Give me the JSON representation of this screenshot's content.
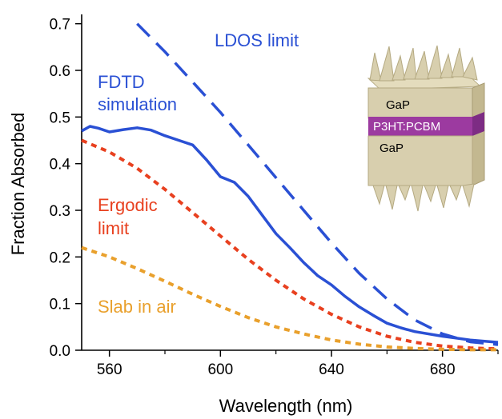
{
  "chart_data": {
    "type": "line",
    "title": "",
    "xlabel": "Wavelength (nm)",
    "ylabel": "Fraction Absorbed",
    "xlim": [
      550,
      700
    ],
    "ylim": [
      0,
      0.72
    ],
    "x_ticks": [
      560,
      600,
      640,
      680
    ],
    "x_tick_labels": [
      "560",
      "600",
      "640",
      "680"
    ],
    "y_ticks": [
      0.0,
      0.1,
      0.2,
      0.3,
      0.4,
      0.5,
      0.6,
      0.7
    ],
    "y_tick_labels": [
      "0.0",
      "0.1",
      "0.2",
      "0.3",
      "0.4",
      "0.5",
      "0.6",
      "0.7"
    ],
    "grid": false,
    "series": [
      {
        "name": "LDOS limit",
        "color": "#2a50d4",
        "style": "long-dash",
        "x": [
          570,
          580,
          590,
          600,
          610,
          620,
          630,
          640,
          650,
          660,
          670,
          680,
          690,
          700
        ],
        "y": [
          0.7,
          0.64,
          0.575,
          0.51,
          0.44,
          0.37,
          0.3,
          0.23,
          0.165,
          0.11,
          0.065,
          0.035,
          0.018,
          0.012
        ]
      },
      {
        "name": "FDTD simulation",
        "color": "#2a50d4",
        "style": "solid",
        "x": [
          550,
          553,
          556,
          560,
          565,
          570,
          575,
          580,
          585,
          590,
          595,
          600,
          605,
          610,
          615,
          620,
          625,
          630,
          635,
          640,
          645,
          650,
          655,
          660,
          665,
          670,
          680,
          690,
          700
        ],
        "y": [
          0.47,
          0.48,
          0.476,
          0.468,
          0.473,
          0.477,
          0.472,
          0.46,
          0.45,
          0.44,
          0.408,
          0.372,
          0.36,
          0.33,
          0.29,
          0.25,
          0.22,
          0.188,
          0.16,
          0.14,
          0.115,
          0.093,
          0.075,
          0.058,
          0.048,
          0.04,
          0.03,
          0.022,
          0.017
        ]
      },
      {
        "name": "Ergodic limit",
        "color": "#e8401f",
        "style": "dotted",
        "x": [
          550,
          560,
          570,
          580,
          590,
          600,
          610,
          620,
          630,
          640,
          650,
          660,
          670,
          680,
          690,
          700
        ],
        "y": [
          0.45,
          0.425,
          0.39,
          0.345,
          0.295,
          0.245,
          0.195,
          0.15,
          0.11,
          0.077,
          0.05,
          0.03,
          0.017,
          0.009,
          0.005,
          0.003
        ]
      },
      {
        "name": "Slab in air",
        "color": "#e9a02c",
        "style": "dotted",
        "x": [
          550,
          560,
          570,
          580,
          590,
          600,
          610,
          620,
          630,
          640,
          650,
          660,
          670,
          680,
          690,
          700
        ],
        "y": [
          0.22,
          0.2,
          0.175,
          0.148,
          0.12,
          0.094,
          0.07,
          0.05,
          0.035,
          0.022,
          0.013,
          0.007,
          0.004,
          0.002,
          0.001,
          0.001
        ]
      }
    ],
    "annotations": [
      {
        "text": "LDOS limit",
        "color": "#2a50d4"
      },
      {
        "text": "FDTD",
        "color": "#2a50d4"
      },
      {
        "text": "simulation",
        "color": "#2a50d4"
      },
      {
        "text": "Ergodic",
        "color": "#e8401f"
      },
      {
        "text": "limit",
        "color": "#e8401f"
      },
      {
        "text": "Slab in air",
        "color": "#e9a02c"
      }
    ],
    "inset": {
      "top_label": "GaP",
      "middle_label": "P3HT:PCBM",
      "bottom_label": "GaP",
      "gap_color": "#d8cfae",
      "active_color": "#9c3aa0"
    }
  }
}
